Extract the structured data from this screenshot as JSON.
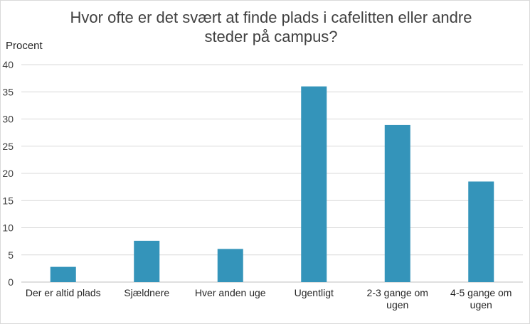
{
  "chart_data": {
    "type": "bar",
    "title_lines": [
      "Hvor ofte er det svært at finde plads i cafelitten eller andre",
      "steder på campus?"
    ],
    "ylabel": "Procent",
    "xlabel": "",
    "ylim": [
      0,
      40
    ],
    "yticks": [
      0,
      5,
      10,
      15,
      20,
      25,
      30,
      35,
      40
    ],
    "categories": [
      [
        "Der er altid plads"
      ],
      [
        "Sjældnere"
      ],
      [
        "Hver anden uge"
      ],
      [
        "Ugentligt"
      ],
      [
        "2-3 gange om",
        "ugen"
      ],
      [
        "4-5 gange om",
        "ugen"
      ]
    ],
    "values": [
      2.8,
      7.6,
      6.1,
      36.0,
      28.9,
      18.5
    ],
    "bar_color": "#3494ba",
    "grid": true,
    "legend": "none"
  }
}
